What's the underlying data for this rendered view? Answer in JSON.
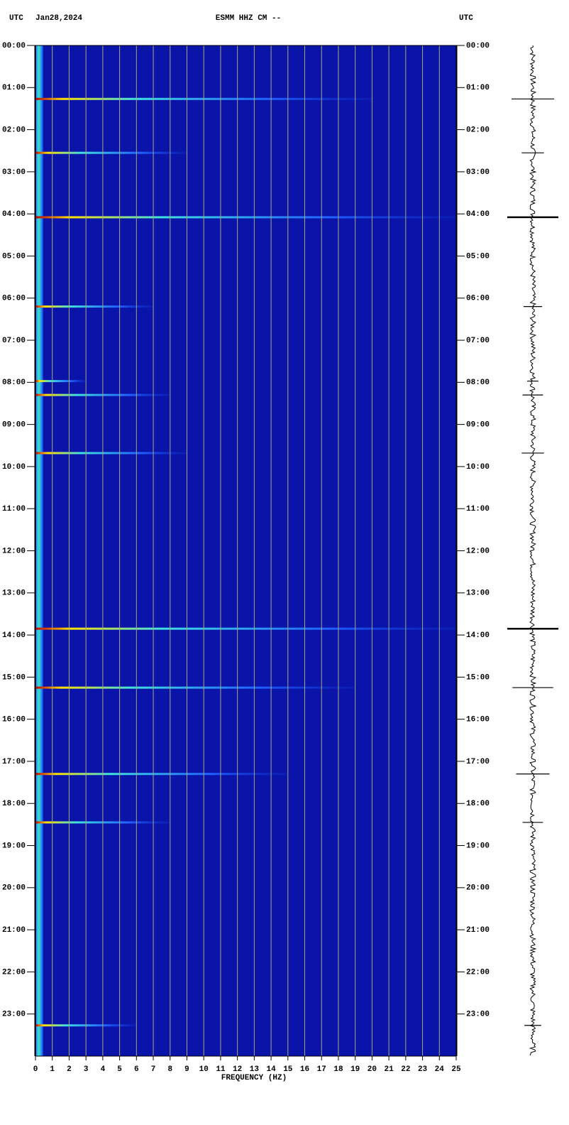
{
  "chart_data": {
    "type": "spectrogram",
    "title": "ESMM HHZ CM --",
    "left_label": "UTC",
    "date": "Jan28,2024",
    "right_label": "UTC",
    "xlabel": "FREQUENCY (HZ)",
    "xlim": [
      0,
      25
    ],
    "xticks": [
      0,
      1,
      2,
      3,
      4,
      5,
      6,
      7,
      8,
      9,
      10,
      11,
      12,
      13,
      14,
      15,
      16,
      17,
      18,
      19,
      20,
      21,
      22,
      23,
      24,
      25
    ],
    "ylim": [
      0,
      24
    ],
    "yticks": [
      {
        "value": 0,
        "label": "00:00"
      },
      {
        "value": 1,
        "label": "01:00"
      },
      {
        "value": 2,
        "label": "02:00"
      },
      {
        "value": 3,
        "label": "03:00"
      },
      {
        "value": 4,
        "label": "04:00"
      },
      {
        "value": 5,
        "label": "05:00"
      },
      {
        "value": 6,
        "label": "06:00"
      },
      {
        "value": 7,
        "label": "07:00"
      },
      {
        "value": 8,
        "label": "08:00"
      },
      {
        "value": 9,
        "label": "09:00"
      },
      {
        "value": 10,
        "label": "10:00"
      },
      {
        "value": 11,
        "label": "11:00"
      },
      {
        "value": 12,
        "label": "12:00"
      },
      {
        "value": 13,
        "label": "13:00"
      },
      {
        "value": 14,
        "label": "14:00"
      },
      {
        "value": 15,
        "label": "15:00"
      },
      {
        "value": 16,
        "label": "16:00"
      },
      {
        "value": 17,
        "label": "17:00"
      },
      {
        "value": 18,
        "label": "18:00"
      },
      {
        "value": 19,
        "label": "19:00"
      },
      {
        "value": 20,
        "label": "20:00"
      },
      {
        "value": 21,
        "label": "21:00"
      },
      {
        "value": 22,
        "label": "22:00"
      },
      {
        "value": 23,
        "label": "23:00"
      }
    ],
    "background": "#0a14a8",
    "grid": true,
    "grid_color": "#a8a878",
    "events": [
      {
        "time": 1.27,
        "fmax": 20
      },
      {
        "time": 2.55,
        "fmax": 9
      },
      {
        "time": 4.08,
        "fmax": 25
      },
      {
        "time": 6.2,
        "fmax": 7
      },
      {
        "time": 7.97,
        "fmax": 3
      },
      {
        "time": 8.3,
        "fmax": 8
      },
      {
        "time": 9.68,
        "fmax": 9
      },
      {
        "time": 13.85,
        "fmax": 25
      },
      {
        "time": 15.25,
        "fmax": 19
      },
      {
        "time": 17.3,
        "fmax": 15
      },
      {
        "time": 18.45,
        "fmax": 8
      },
      {
        "time": 23.27,
        "fmax": 6
      }
    ]
  }
}
